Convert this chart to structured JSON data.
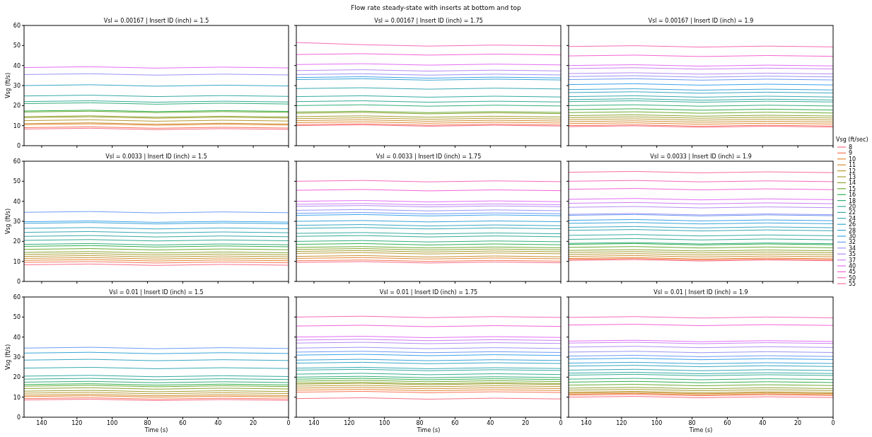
{
  "chart_data": [
    {
      "type": "line",
      "title": "Vsl = 0.00167 | Insert ID (inch) = 1.5",
      "annotations": [
        "Flow rate steady-state with inserts at bottom and top"
      ],
      "ylabel": "Vsg (ft/s)",
      "tick_labels": "y",
      "xlim": [
        150,
        0
      ],
      "xticks": [
        140,
        120,
        100,
        80,
        60,
        40,
        20,
        0
      ],
      "ylim": [
        0,
        60
      ],
      "yticks": [
        0,
        10,
        20,
        30,
        40,
        50,
        60
      ],
      "x": [
        150,
        112.5,
        75,
        37.5,
        0
      ],
      "series": [
        {
          "color": "#f77189",
          "values": [
            8.3,
            8.7,
            8,
            8.5,
            8.1
          ]
        },
        {
          "color": "#f7755a",
          "values": [
            9,
            9.4,
            8.7,
            9.2,
            8.8
          ]
        },
        {
          "color": "#e48731",
          "values": [
            10.5,
            10.9,
            10.2,
            10.7,
            10.3
          ]
        },
        {
          "color": "#cc8f32",
          "values": [
            11,
            11.4,
            10.7,
            11.2,
            10.8
          ]
        },
        {
          "color": "#b89a31",
          "values": [
            12.5,
            12.9,
            12.2,
            12.7,
            12.3
          ]
        },
        {
          "color": "#a39f31",
          "values": [
            14,
            14.4,
            13.7,
            14.2,
            13.8
          ]
        },
        {
          "color": "#8ca531",
          "values": [
            14.5,
            14.9,
            14.2,
            14.7,
            14.3
          ]
        },
        {
          "color": "#6aac31",
          "values": [
            16.8,
            17.2,
            16.5,
            17,
            16.6
          ]
        },
        {
          "color": "#32b04e",
          "values": [
            17.3,
            17.7,
            17,
            17.5,
            17.1
          ]
        },
        {
          "color": "#34ae7c",
          "values": [
            21,
            21.4,
            20.7,
            21.2,
            20.8
          ]
        },
        {
          "color": "#35ac95",
          "values": [
            22,
            22.4,
            21.7,
            22.2,
            21.8
          ]
        },
        {
          "color": "#36aba5",
          "values": [
            24.8,
            25.2,
            24.5,
            25,
            24.6
          ]
        },
        {
          "color": "#38a8c5",
          "values": [
            30,
            30.4,
            29.7,
            30.2,
            29.8
          ]
        },
        {
          "color": "#9b94f4",
          "values": [
            35.5,
            35.9,
            35.2,
            35.7,
            35.3
          ]
        },
        {
          "color": "#e46ef4",
          "values": [
            39,
            39.4,
            38.7,
            39.2,
            38.8
          ]
        }
      ]
    },
    {
      "type": "line",
      "title": "Vsl = 0.00167 | Insert ID (inch) = 1.75",
      "tick_labels": false,
      "xlim": [
        150,
        0
      ],
      "xticks": [
        140,
        120,
        100,
        80,
        60,
        40,
        20,
        0
      ],
      "ylim": [
        0,
        60
      ],
      "yticks": [
        0,
        10,
        20,
        30,
        40,
        50,
        60
      ],
      "x": [
        150,
        112.5,
        75,
        37.5,
        0
      ],
      "series": [
        {
          "color": "#f77189",
          "values": [
            10,
            10.4,
            9.7,
            10.2,
            9.8
          ]
        },
        {
          "color": "#f7755a",
          "values": [
            10.5,
            10.9,
            10.2,
            10.7,
            10.3
          ]
        },
        {
          "color": "#e48731",
          "values": [
            11.5,
            11.9,
            11.2,
            11.7,
            11.3
          ]
        },
        {
          "color": "#cc8f32",
          "values": [
            12.5,
            12.9,
            12.2,
            12.7,
            12.3
          ]
        },
        {
          "color": "#b89a31",
          "values": [
            13.5,
            13.9,
            13.2,
            13.7,
            13.3
          ]
        },
        {
          "color": "#a39f31",
          "values": [
            14.5,
            14.9,
            14.2,
            14.7,
            14.3
          ]
        },
        {
          "color": "#8ca531",
          "values": [
            16.2,
            16.6,
            15.9,
            16.4,
            16
          ]
        },
        {
          "color": "#6aac31",
          "values": [
            16.8,
            17.2,
            16.5,
            17,
            16.6
          ]
        },
        {
          "color": "#34ae7c",
          "values": [
            20,
            20.4,
            19.7,
            20.2,
            19.8
          ]
        },
        {
          "color": "#35ac95",
          "values": [
            22,
            22.4,
            21.7,
            22.2,
            21.8
          ]
        },
        {
          "color": "#36aba5",
          "values": [
            24.5,
            24.9,
            24.2,
            24.7,
            24.3
          ]
        },
        {
          "color": "#37aab4",
          "values": [
            28.5,
            28.9,
            28.2,
            28.7,
            28.3
          ]
        },
        {
          "color": "#3aa5d8",
          "values": [
            33,
            33.4,
            32.7,
            33.2,
            32.8
          ]
        },
        {
          "color": "#3ba3ec",
          "values": [
            34,
            34.4,
            33.7,
            34.2,
            33.8
          ]
        },
        {
          "color": "#9b94f4",
          "values": [
            35.5,
            35.9,
            35.2,
            35.7,
            35.3
          ]
        },
        {
          "color": "#b48cf4",
          "values": [
            37.5,
            37.9,
            37.2,
            37.7,
            37.3
          ]
        },
        {
          "color": "#e46ef4",
          "values": [
            40.5,
            40.9,
            40.2,
            40.7,
            40.3
          ]
        },
        {
          "color": "#f564d4",
          "values": [
            45.5,
            45.9,
            45.2,
            45.7,
            45.3
          ]
        },
        {
          "color": "#f66bb5",
          "values": [
            51.5,
            50.4,
            49.7,
            50.2,
            49.8
          ]
        }
      ]
    },
    {
      "type": "line",
      "title": "Vsl = 0.00167 | Insert ID (inch) = 1.9",
      "tick_labels": false,
      "xlim": [
        150,
        0
      ],
      "xticks": [
        140,
        120,
        100,
        80,
        60,
        40,
        20,
        0
      ],
      "ylim": [
        0,
        60
      ],
      "yticks": [
        0,
        10,
        20,
        30,
        40,
        50,
        60
      ],
      "x": [
        150,
        112.5,
        75,
        37.5,
        0
      ],
      "series": [
        {
          "color": "#f77189",
          "values": [
            9.5,
            9.9,
            9.2,
            9.7,
            9.3
          ]
        },
        {
          "color": "#f7755a",
          "values": [
            10,
            10.4,
            9.7,
            10.2,
            9.8
          ]
        },
        {
          "color": "#e48731",
          "values": [
            11,
            11.4,
            10.7,
            11.2,
            10.8
          ]
        },
        {
          "color": "#cc8f32",
          "values": [
            12,
            12.4,
            11.7,
            12.2,
            11.8
          ]
        },
        {
          "color": "#b89a31",
          "values": [
            13,
            13.4,
            12.7,
            13.2,
            12.8
          ]
        },
        {
          "color": "#a39f31",
          "values": [
            14,
            14.4,
            13.7,
            14.2,
            13.8
          ]
        },
        {
          "color": "#8ca531",
          "values": [
            15,
            15.4,
            14.7,
            15.2,
            14.8
          ]
        },
        {
          "color": "#6aac31",
          "values": [
            16.5,
            16.9,
            16.2,
            16.7,
            16.3
          ]
        },
        {
          "color": "#32b04e",
          "values": [
            18,
            18.4,
            17.7,
            18.2,
            17.8
          ]
        },
        {
          "color": "#34ae7c",
          "values": [
            20,
            20.4,
            19.7,
            20.2,
            19.8
          ]
        },
        {
          "color": "#35ac95",
          "values": [
            22,
            22.4,
            21.7,
            22.2,
            21.8
          ]
        },
        {
          "color": "#36aba5",
          "values": [
            23,
            23.4,
            22.7,
            23.2,
            22.8
          ]
        },
        {
          "color": "#37aab4",
          "values": [
            24.5,
            24.9,
            24.2,
            24.7,
            24.3
          ]
        },
        {
          "color": "#38a8c5",
          "values": [
            26.5,
            26.9,
            26.2,
            26.7,
            26.3
          ]
        },
        {
          "color": "#3aa5d8",
          "values": [
            28,
            28.4,
            27.7,
            28.2,
            27.8
          ]
        },
        {
          "color": "#3ba3ec",
          "values": [
            30.5,
            30.9,
            30.2,
            30.7,
            30.3
          ]
        },
        {
          "color": "#6e9bf4",
          "values": [
            33,
            33.4,
            32.7,
            33.2,
            32.8
          ]
        },
        {
          "color": "#9b94f4",
          "values": [
            34.5,
            34.9,
            34.2,
            34.7,
            34.3
          ]
        },
        {
          "color": "#b48cf4",
          "values": [
            36,
            36.4,
            35.7,
            36.2,
            35.8
          ]
        },
        {
          "color": "#cc7ff4",
          "values": [
            38.5,
            38.9,
            38.2,
            38.7,
            38.3
          ]
        },
        {
          "color": "#e46ef4",
          "values": [
            40,
            40.4,
            39.7,
            40.2,
            39.8
          ]
        },
        {
          "color": "#f564d4",
          "values": [
            44.8,
            45.2,
            44.5,
            45,
            44.6
          ]
        },
        {
          "color": "#f66bb5",
          "values": [
            49.5,
            49.9,
            49.2,
            49.7,
            49.3
          ]
        }
      ]
    },
    {
      "type": "line",
      "title": "Vsl = 0.0033 | Insert ID (inch) = 1.5",
      "ylabel": "Vsg (ft/s)",
      "tick_labels": "y",
      "xlim": [
        150,
        0
      ],
      "xticks": [
        140,
        120,
        100,
        80,
        60,
        40,
        20,
        0
      ],
      "ylim": [
        0,
        60
      ],
      "yticks": [
        0,
        10,
        20,
        30,
        40,
        50,
        60
      ],
      "x": [
        150,
        112.5,
        75,
        37.5,
        0
      ],
      "series": [
        {
          "color": "#f77189",
          "values": [
            8.3,
            8.7,
            8,
            8.5,
            8.1
          ]
        },
        {
          "color": "#f7755a",
          "values": [
            9.5,
            9.9,
            9.2,
            9.7,
            9.3
          ]
        },
        {
          "color": "#e48731",
          "values": [
            10.5,
            10.9,
            10.2,
            10.7,
            10.3
          ]
        },
        {
          "color": "#cc8f32",
          "values": [
            11.5,
            11.9,
            11.2,
            11.7,
            11.3
          ]
        },
        {
          "color": "#b89a31",
          "values": [
            12.5,
            12.9,
            12.2,
            12.7,
            12.3
          ]
        },
        {
          "color": "#a39f31",
          "values": [
            13.5,
            13.9,
            13.2,
            13.7,
            13.3
          ]
        },
        {
          "color": "#8ca531",
          "values": [
            14.5,
            14.9,
            14.2,
            14.7,
            14.3
          ]
        },
        {
          "color": "#6aac31",
          "values": [
            16,
            16.4,
            15.7,
            16.2,
            15.8
          ]
        },
        {
          "color": "#32b04e",
          "values": [
            17.5,
            17.9,
            17.2,
            17.7,
            17.3
          ]
        },
        {
          "color": "#34ae7c",
          "values": [
            18.5,
            18.9,
            18.2,
            18.7,
            18.3
          ]
        },
        {
          "color": "#35ac95",
          "values": [
            20.5,
            20.9,
            20.2,
            20.7,
            20.3
          ]
        },
        {
          "color": "#36aba5",
          "values": [
            22.5,
            22.9,
            22.2,
            22.7,
            22.3
          ]
        },
        {
          "color": "#37aab4",
          "values": [
            24.5,
            24.9,
            24.2,
            24.7,
            24.3
          ]
        },
        {
          "color": "#38a8c5",
          "values": [
            26.5,
            26.9,
            26.2,
            26.7,
            26.3
          ]
        },
        {
          "color": "#3aa5d8",
          "values": [
            29,
            29.4,
            28.7,
            29.2,
            28.8
          ]
        },
        {
          "color": "#3ba3ec",
          "values": [
            29.8,
            30.2,
            29.5,
            30,
            29.6
          ]
        },
        {
          "color": "#6e9bf4",
          "values": [
            34.5,
            34.9,
            34.2,
            34.7,
            34.3
          ]
        }
      ]
    },
    {
      "type": "line",
      "title": "Vsl = 0.0033 | Insert ID (inch) = 1.75",
      "tick_labels": false,
      "xlim": [
        150,
        0
      ],
      "xticks": [
        140,
        120,
        100,
        80,
        60,
        40,
        20,
        0
      ],
      "ylim": [
        0,
        60
      ],
      "yticks": [
        0,
        10,
        20,
        30,
        40,
        50,
        60
      ],
      "x": [
        150,
        112.5,
        75,
        37.5,
        0
      ],
      "series": [
        {
          "color": "#f77189",
          "values": [
            9.5,
            9.9,
            9.2,
            9.7,
            9.3
          ]
        },
        {
          "color": "#f7755a",
          "values": [
            10.3,
            10.7,
            10,
            10.5,
            10.1
          ]
        },
        {
          "color": "#e48731",
          "values": [
            11.5,
            11.9,
            11.2,
            11.7,
            11.3
          ]
        },
        {
          "color": "#cc8f32",
          "values": [
            12.5,
            12.9,
            12.2,
            12.7,
            12.3
          ]
        },
        {
          "color": "#b89a31",
          "values": [
            14,
            14.4,
            13.7,
            14.2,
            13.8
          ]
        },
        {
          "color": "#a39f31",
          "values": [
            15,
            15.4,
            14.7,
            15.2,
            14.8
          ]
        },
        {
          "color": "#8ca531",
          "values": [
            16,
            16.4,
            15.7,
            16.2,
            15.8
          ]
        },
        {
          "color": "#6aac31",
          "values": [
            17,
            17.4,
            16.7,
            17.2,
            16.8
          ]
        },
        {
          "color": "#32b04e",
          "values": [
            18.5,
            18.9,
            18.2,
            18.7,
            18.3
          ]
        },
        {
          "color": "#34ae7c",
          "values": [
            20,
            20.4,
            19.7,
            20.2,
            19.8
          ]
        },
        {
          "color": "#35ac95",
          "values": [
            22.5,
            22.9,
            22.2,
            22.7,
            22.3
          ]
        },
        {
          "color": "#36aba5",
          "values": [
            24,
            24.4,
            23.7,
            24.2,
            23.8
          ]
        },
        {
          "color": "#37aab4",
          "values": [
            26.5,
            26.9,
            26.2,
            26.7,
            26.3
          ]
        },
        {
          "color": "#38a8c5",
          "values": [
            28,
            28.4,
            27.7,
            28.2,
            27.8
          ]
        },
        {
          "color": "#3aa5d8",
          "values": [
            30,
            30.4,
            29.7,
            30.2,
            29.8
          ]
        },
        {
          "color": "#3ba3ec",
          "values": [
            33,
            33.4,
            32.7,
            33.2,
            32.8
          ]
        },
        {
          "color": "#6e9bf4",
          "values": [
            34,
            34.4,
            33.7,
            34.2,
            33.8
          ]
        },
        {
          "color": "#9b94f4",
          "values": [
            35.5,
            35.9,
            35.2,
            35.7,
            35.3
          ]
        },
        {
          "color": "#b48cf4",
          "values": [
            37.5,
            37.9,
            37.2,
            37.7,
            37.3
          ]
        },
        {
          "color": "#cc7ff4",
          "values": [
            38.5,
            38.9,
            38.2,
            38.7,
            38.3
          ]
        },
        {
          "color": "#e46ef4",
          "values": [
            40,
            40.4,
            39.7,
            40.2,
            39.8
          ]
        },
        {
          "color": "#f564d4",
          "values": [
            45.5,
            45.9,
            45.2,
            45.7,
            45.3
          ]
        },
        {
          "color": "#f66bb5",
          "values": [
            50,
            50.4,
            49.7,
            50.2,
            49.8
          ]
        }
      ]
    },
    {
      "type": "line",
      "title": "Vsl = 0.0033 | Insert ID (inch) = 1.9",
      "tick_labels": false,
      "legend": "right",
      "legend_title": "Vsg (ft/sec)",
      "xlim": [
        150,
        0
      ],
      "xticks": [
        140,
        120,
        100,
        80,
        60,
        40,
        20,
        0
      ],
      "ylim": [
        0,
        60
      ],
      "yticks": [
        0,
        10,
        20,
        30,
        40,
        50,
        60
      ],
      "x": [
        150,
        112.5,
        75,
        37.5,
        0
      ],
      "series": [
        {
          "name": "8",
          "color": "#f77189",
          "values": [
            10.5,
            10.9,
            10.2,
            10.7,
            10.3
          ]
        },
        {
          "name": "9",
          "color": "#f7755a",
          "values": [
            11,
            11.4,
            10.7,
            11.2,
            10.8
          ]
        },
        {
          "name": "10",
          "color": "#e48731",
          "values": [
            11.5,
            11.9,
            11.2,
            11.7,
            11.3
          ]
        },
        {
          "name": "11",
          "color": "#cc8f32",
          "values": [
            12.5,
            12.9,
            12.2,
            12.7,
            12.3
          ]
        },
        {
          "name": "12",
          "color": "#b89a31",
          "values": [
            13.5,
            13.9,
            13.2,
            13.7,
            13.3
          ]
        },
        {
          "name": "13",
          "color": "#a39f31",
          "values": [
            14.5,
            14.9,
            14.2,
            14.7,
            14.3
          ]
        },
        {
          "name": "14",
          "color": "#8ca531",
          "values": [
            15.5,
            15.9,
            15.2,
            15.7,
            15.3
          ]
        },
        {
          "name": "15",
          "color": "#6aac31",
          "values": [
            17,
            17.4,
            16.7,
            17.2,
            16.8
          ]
        },
        {
          "name": "16",
          "color": "#32b04e",
          "values": [
            18.5,
            18.9,
            18.2,
            18.7,
            18.3
          ]
        },
        {
          "name": "18",
          "color": "#34ae7c",
          "values": [
            19,
            19.4,
            18.7,
            19.2,
            18.8
          ]
        },
        {
          "name": "20",
          "color": "#35ac95",
          "values": [
            21,
            21.4,
            20.7,
            21.2,
            20.8
          ]
        },
        {
          "name": "22",
          "color": "#36aba5",
          "values": [
            23,
            23.4,
            22.7,
            23.2,
            22.8
          ]
        },
        {
          "name": "24",
          "color": "#37aab4",
          "values": [
            25.5,
            25.9,
            25.2,
            25.7,
            25.3
          ]
        },
        {
          "name": "26",
          "color": "#38a8c5",
          "values": [
            27,
            27.4,
            26.7,
            27.2,
            26.8
          ]
        },
        {
          "name": "28",
          "color": "#3aa5d8",
          "values": [
            29,
            29.4,
            28.7,
            29.2,
            28.8
          ]
        },
        {
          "name": "30",
          "color": "#3ba3ec",
          "values": [
            30.5,
            30.9,
            30.2,
            30.7,
            30.3
          ]
        },
        {
          "name": "32",
          "color": "#6e9bf4",
          "values": [
            33,
            33.4,
            32.7,
            33.2,
            32.8
          ]
        },
        {
          "name": "34",
          "color": "#9b94f4",
          "values": [
            33.5,
            33.9,
            33.2,
            33.7,
            33.3
          ]
        },
        {
          "name": "35",
          "color": "#b48cf4",
          "values": [
            37,
            37.4,
            36.7,
            37.2,
            36.8
          ]
        },
        {
          "name": "37",
          "color": "#cc7ff4",
          "values": [
            39,
            39.4,
            38.7,
            39.2,
            38.8
          ]
        },
        {
          "name": "40",
          "color": "#e46ef4",
          "values": [
            41,
            41.4,
            40.7,
            41.2,
            40.8
          ]
        },
        {
          "name": "45",
          "color": "#f564d4",
          "values": [
            46,
            46.4,
            45.7,
            46.2,
            45.8
          ]
        },
        {
          "name": "50",
          "color": "#f66bb5",
          "values": [
            50,
            50.4,
            49.7,
            50.2,
            49.8
          ]
        },
        {
          "name": "55",
          "color": "#f76ea0",
          "values": [
            54.5,
            54.9,
            54.2,
            54.7,
            54.3
          ]
        }
      ]
    },
    {
      "type": "line",
      "title": "Vsl = 0.01 | Insert ID (inch) = 1.5",
      "xlabel": "Time (s)",
      "ylabel": "Vsg (ft/s)",
      "xlim": [
        150,
        0
      ],
      "xticks": [
        140,
        120,
        100,
        80,
        60,
        40,
        20,
        0
      ],
      "ylim": [
        0,
        60
      ],
      "yticks": [
        0,
        10,
        20,
        30,
        40,
        50,
        60
      ],
      "x": [
        150,
        112.5,
        75,
        37.5,
        0
      ],
      "series": [
        {
          "color": "#f77189",
          "values": [
            8.6,
            9,
            8.3,
            8.8,
            8.4
          ]
        },
        {
          "color": "#f7755a",
          "values": [
            9.3,
            9.7,
            9,
            9.5,
            9.1
          ]
        },
        {
          "color": "#e48731",
          "values": [
            10.3,
            10.7,
            10,
            10.5,
            10.1
          ]
        },
        {
          "color": "#cc8f32",
          "values": [
            11,
            11.4,
            10.7,
            11.2,
            10.8
          ]
        },
        {
          "color": "#b89a31",
          "values": [
            12,
            12.4,
            11.7,
            12.2,
            11.8
          ]
        },
        {
          "color": "#a39f31",
          "values": [
            13,
            13.4,
            12.7,
            13.2,
            12.8
          ]
        },
        {
          "color": "#8ca531",
          "values": [
            14.3,
            14.7,
            14,
            14.5,
            14.1
          ]
        },
        {
          "color": "#6aac31",
          "values": [
            15.5,
            15.9,
            15.2,
            15.7,
            15.3
          ]
        },
        {
          "color": "#32b04e",
          "values": [
            16.3,
            16.7,
            16,
            16.5,
            16.1
          ]
        },
        {
          "color": "#34ae7c",
          "values": [
            17.5,
            17.9,
            17.2,
            17.7,
            17.3
          ]
        },
        {
          "color": "#35ac95",
          "values": [
            19,
            19.4,
            18.7,
            19.2,
            18.8
          ]
        },
        {
          "color": "#36aba5",
          "values": [
            20.5,
            20.9,
            20.2,
            20.7,
            20.3
          ]
        },
        {
          "color": "#37aab4",
          "values": [
            24.5,
            24.9,
            24.2,
            24.7,
            24.3
          ]
        },
        {
          "color": "#38a8c5",
          "values": [
            28.5,
            28.9,
            28.2,
            28.7,
            28.3
          ]
        },
        {
          "color": "#3aa5d8",
          "values": [
            32,
            32.4,
            31.7,
            32.2,
            31.8
          ]
        },
        {
          "color": "#6e9bf4",
          "values": [
            34.5,
            34.9,
            34.2,
            34.7,
            34.3
          ]
        }
      ]
    },
    {
      "type": "line",
      "title": "Vsl = 0.01 | Insert ID (inch) = 1.75",
      "xlabel": "Time (s)",
      "tick_labels": "x",
      "xlim": [
        150,
        0
      ],
      "xticks": [
        140,
        120,
        100,
        80,
        60,
        40,
        20,
        0
      ],
      "ylim": [
        0,
        60
      ],
      "yticks": [
        0,
        10,
        20,
        30,
        40,
        50,
        60
      ],
      "x": [
        150,
        112.5,
        75,
        37.5,
        0
      ],
      "series": [
        {
          "color": "#f77189",
          "values": [
            9.3,
            9.7,
            9,
            9.5,
            9.1
          ]
        },
        {
          "color": "#f7755a",
          "values": [
            12.5,
            12.9,
            12.2,
            12.7,
            12.3
          ]
        },
        {
          "color": "#e48731",
          "values": [
            13.5,
            13.9,
            13.2,
            13.7,
            13.3
          ]
        },
        {
          "color": "#cc8f32",
          "values": [
            14.5,
            14.9,
            14.2,
            14.7,
            14.3
          ]
        },
        {
          "color": "#b89a31",
          "values": [
            15.5,
            15.9,
            15.2,
            15.7,
            15.3
          ]
        },
        {
          "color": "#a39f31",
          "values": [
            16.5,
            16.9,
            16.2,
            16.7,
            16.3
          ]
        },
        {
          "color": "#8ca531",
          "values": [
            17,
            17.4,
            16.7,
            17.2,
            16.8
          ]
        },
        {
          "color": "#6aac31",
          "values": [
            18,
            18.4,
            17.7,
            18.2,
            17.8
          ]
        },
        {
          "color": "#32b04e",
          "values": [
            19,
            19.4,
            18.7,
            19.2,
            18.8
          ]
        },
        {
          "color": "#34ae7c",
          "values": [
            20,
            20.4,
            19.7,
            20.2,
            19.8
          ]
        },
        {
          "color": "#35ac95",
          "values": [
            21.5,
            21.9,
            21.2,
            21.7,
            21.3
          ]
        },
        {
          "color": "#36aba5",
          "values": [
            23.5,
            23.9,
            23.2,
            23.7,
            23.3
          ]
        },
        {
          "color": "#37aab4",
          "values": [
            24.5,
            24.9,
            24.2,
            24.7,
            24.3
          ]
        },
        {
          "color": "#38a8c5",
          "values": [
            27,
            27.4,
            26.7,
            27.2,
            26.8
          ]
        },
        {
          "color": "#3aa5d8",
          "values": [
            28.5,
            28.9,
            28.2,
            28.7,
            28.3
          ]
        },
        {
          "color": "#3ba3ec",
          "values": [
            31,
            31.4,
            30.7,
            31.2,
            30.8
          ]
        },
        {
          "color": "#6e9bf4",
          "values": [
            32.5,
            32.9,
            32.2,
            32.7,
            32.3
          ]
        },
        {
          "color": "#9b94f4",
          "values": [
            34.5,
            34.9,
            34.2,
            34.7,
            34.3
          ]
        },
        {
          "color": "#b48cf4",
          "values": [
            37,
            37.4,
            36.7,
            37.2,
            36.8
          ]
        },
        {
          "color": "#cc7ff4",
          "values": [
            38.5,
            38.9,
            38.2,
            38.7,
            38.3
          ]
        },
        {
          "color": "#e46ef4",
          "values": [
            40,
            40.4,
            39.7,
            40.2,
            39.8
          ]
        },
        {
          "color": "#f564d4",
          "values": [
            45.5,
            45.9,
            45.2,
            45.7,
            45.3
          ]
        },
        {
          "color": "#f66bb5",
          "values": [
            50,
            50.4,
            49.7,
            50.2,
            49.8
          ]
        }
      ]
    },
    {
      "type": "line",
      "title": "Vsl = 0.01 | Insert ID (inch) = 1.9",
      "xlabel": "Time (s)",
      "tick_labels": "x",
      "xlim": [
        150,
        0
      ],
      "xticks": [
        140,
        120,
        100,
        80,
        60,
        40,
        20,
        0
      ],
      "ylim": [
        0,
        60
      ],
      "yticks": [
        0,
        10,
        20,
        30,
        40,
        50,
        60
      ],
      "x": [
        150,
        112.5,
        75,
        37.5,
        0
      ],
      "series": [
        {
          "color": "#f77189",
          "values": [
            10,
            10.4,
            9.7,
            10.2,
            9.8
          ]
        },
        {
          "color": "#f7755a",
          "values": [
            11,
            11.4,
            10.7,
            11.2,
            10.8
          ]
        },
        {
          "color": "#e48731",
          "values": [
            11.5,
            11.9,
            11.2,
            11.7,
            11.3
          ]
        },
        {
          "color": "#cc8f32",
          "values": [
            12,
            12.4,
            11.7,
            12.2,
            11.8
          ]
        },
        {
          "color": "#b89a31",
          "values": [
            12.5,
            12.9,
            12.2,
            12.7,
            12.3
          ]
        },
        {
          "color": "#a39f31",
          "values": [
            13.5,
            13.9,
            13.2,
            13.7,
            13.3
          ]
        },
        {
          "color": "#8ca531",
          "values": [
            14.5,
            14.9,
            14.2,
            14.7,
            14.3
          ]
        },
        {
          "color": "#6aac31",
          "values": [
            16,
            16.4,
            15.7,
            16.2,
            15.8
          ]
        },
        {
          "color": "#32b04e",
          "values": [
            17.5,
            17.9,
            17.2,
            17.7,
            17.3
          ]
        },
        {
          "color": "#34ae7c",
          "values": [
            19,
            19.4,
            18.7,
            19.2,
            18.8
          ]
        },
        {
          "color": "#35ac95",
          "values": [
            21,
            21.4,
            20.7,
            21.2,
            20.8
          ]
        },
        {
          "color": "#36aba5",
          "values": [
            22,
            22.4,
            21.7,
            22.2,
            21.8
          ]
        },
        {
          "color": "#37aab4",
          "values": [
            23.5,
            23.9,
            23.2,
            23.7,
            23.3
          ]
        },
        {
          "color": "#38a8c5",
          "values": [
            25.5,
            25.9,
            25.2,
            25.7,
            25.3
          ]
        },
        {
          "color": "#3aa5d8",
          "values": [
            27,
            27.4,
            26.7,
            27.2,
            26.8
          ]
        },
        {
          "color": "#3ba3ec",
          "values": [
            29,
            29.4,
            28.7,
            29.2,
            28.8
          ]
        },
        {
          "color": "#6e9bf4",
          "values": [
            30.5,
            30.9,
            30.2,
            30.7,
            30.3
          ]
        },
        {
          "color": "#9b94f4",
          "values": [
            32.5,
            32.9,
            32.2,
            32.7,
            32.3
          ]
        },
        {
          "color": "#b48cf4",
          "values": [
            35,
            35.4,
            34.7,
            35.2,
            34.8
          ]
        },
        {
          "color": "#cc7ff4",
          "values": [
            37,
            37.4,
            36.7,
            37.2,
            36.8
          ]
        },
        {
          "color": "#e46ef4",
          "values": [
            38,
            38.4,
            37.7,
            38.2,
            37.8
          ]
        },
        {
          "color": "#f564d4",
          "values": [
            46,
            46.4,
            45.7,
            46.2,
            45.8
          ]
        },
        {
          "color": "#f66bb5",
          "values": [
            49.8,
            50.2,
            49.5,
            50,
            49.6
          ]
        }
      ]
    }
  ]
}
